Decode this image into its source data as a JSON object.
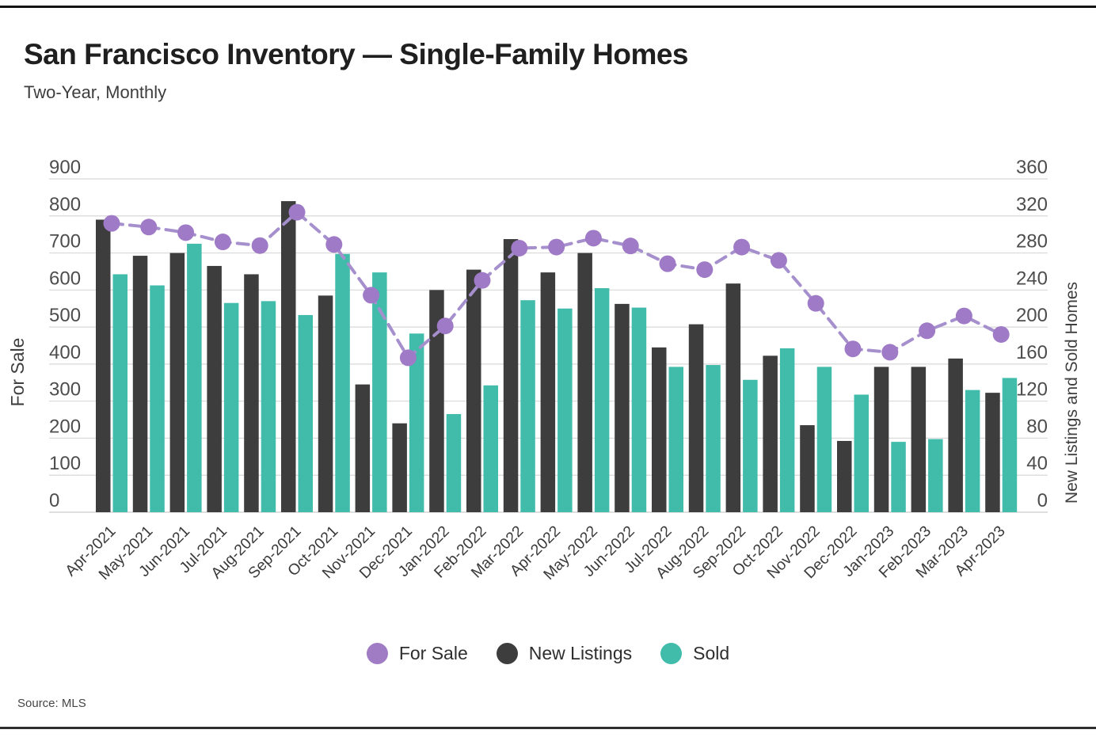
{
  "header": {
    "title": "San Francisco Inventory — Single-Family Homes",
    "subtitle": "Two-Year, Monthly"
  },
  "source": {
    "label": "Source: MLS"
  },
  "legend": {
    "position": "bottom",
    "items": [
      {
        "label": "For Sale",
        "color": "#a07cc5"
      },
      {
        "label": "New Listings",
        "color": "#3d3d3d"
      },
      {
        "label": "Sold",
        "color": "#41bcab"
      }
    ]
  },
  "colors": {
    "for_sale_line": "#a58fcd",
    "for_sale_dot": "#9f7ac6",
    "new_listings_bar": "#3d3d3d",
    "sold_bar": "#41bcab",
    "gridline": "#d8d8d8",
    "baseline": "#cccccc",
    "tick_text": "#4d4d4d",
    "axis_title_text": "#3f3f3f",
    "x_label_text": "#3a3a3a",
    "top_rule": "#141414",
    "bottom_rule": "#2e2e2e"
  },
  "chart_data": {
    "type": "bar",
    "subtype": "dual-axis bars + line",
    "title": "San Francisco Inventory — Single-Family Homes",
    "subtitle": "Two-Year, Monthly",
    "grid": true,
    "legend_position": "bottom",
    "categories": [
      "Apr-2021",
      "May-2021",
      "Jun-2021",
      "Jul-2021",
      "Aug-2021",
      "Sep-2021",
      "Oct-2021",
      "Nov-2021",
      "Dec-2021",
      "Jan-2022",
      "Feb-2022",
      "Mar-2022",
      "Apr-2022",
      "May-2022",
      "Jun-2022",
      "Jul-2022",
      "Aug-2022",
      "Sep-2022",
      "Oct-2022",
      "Nov-2022",
      "Dec-2022",
      "Jan-2023",
      "Feb-2023",
      "Mar-2023",
      "Apr-2023"
    ],
    "axes": {
      "left": {
        "title": "For Sale",
        "range": [
          0,
          900
        ],
        "tick_step": 100,
        "ticks": [
          0,
          100,
          200,
          300,
          400,
          500,
          600,
          700,
          800,
          900
        ]
      },
      "right": {
        "title": "New Listings and Sold Homes",
        "range": [
          0,
          360
        ],
        "tick_step": 40,
        "ticks": [
          0,
          40,
          80,
          120,
          160,
          200,
          240,
          280,
          320,
          360
        ]
      }
    },
    "series": [
      {
        "name": "For Sale",
        "mark": "line",
        "axis": "left",
        "values": [
          780,
          770,
          755,
          730,
          720,
          810,
          723,
          586,
          417,
          503,
          626,
          713,
          716,
          740,
          719,
          671,
          655,
          716,
          680,
          564,
          441,
          432,
          490,
          530,
          480
        ]
      },
      {
        "name": "New Listings",
        "mark": "bar",
        "axis": "right",
        "values": [
          316,
          277,
          280,
          266,
          257,
          336,
          234,
          138,
          96,
          240,
          262,
          295,
          259,
          280,
          225,
          178,
          203,
          247,
          169,
          94,
          77,
          157,
          157,
          166,
          129
        ]
      },
      {
        "name": "Sold",
        "mark": "bar",
        "axis": "right",
        "values": [
          257,
          245,
          290,
          226,
          228,
          213,
          279,
          259,
          193,
          106,
          137,
          229,
          220,
          242,
          221,
          157,
          159,
          143,
          177,
          157,
          127,
          76,
          79,
          132,
          145
        ]
      }
    ]
  }
}
